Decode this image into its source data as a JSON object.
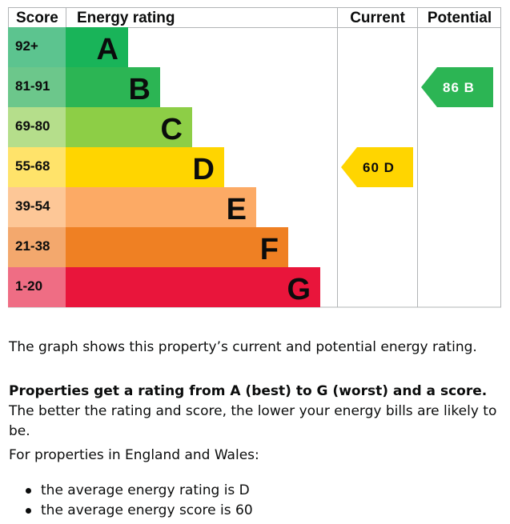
{
  "chart_data": {
    "type": "table",
    "headers": {
      "score": "Score",
      "rating": "Energy rating",
      "current": "Current",
      "potential": "Potential"
    },
    "bands": [
      {
        "score": "92+",
        "letter": "A",
        "color": "#19b459",
        "score_color": "#5cc48f"
      },
      {
        "score": "81-91",
        "letter": "B",
        "color": "#2cb554",
        "score_color": "#6cc78b"
      },
      {
        "score": "69-80",
        "letter": "C",
        "color": "#8dce46",
        "score_color": "#b5de8b"
      },
      {
        "score": "55-68",
        "letter": "D",
        "color": "#ffd500",
        "score_color": "#ffe36a"
      },
      {
        "score": "39-54",
        "letter": "E",
        "color": "#fcaa65",
        "score_color": "#fdc797"
      },
      {
        "score": "21-38",
        "letter": "F",
        "color": "#ef8023",
        "score_color": "#f3a86d"
      },
      {
        "score": "1-20",
        "letter": "G",
        "color": "#e9153b",
        "score_color": "#ef6d84"
      }
    ],
    "current": {
      "score": 60,
      "band": "D",
      "label": "60 D",
      "color": "#ffd500"
    },
    "potential": {
      "score": 86,
      "band": "B",
      "label": "86 B",
      "color": "#2cb554"
    }
  },
  "text": {
    "summary": "The graph shows this property’s current and potential energy rating.",
    "rating_intro_bold": "Properties get a rating from A (best) to G (worst) and a score.",
    "rating_intro_rest": " The better the rating and score, the lower your energy bills are likely to be.",
    "region_intro": "For properties in England and Wales:",
    "average_items": [
      "the average energy rating is D",
      "the average energy score is 60"
    ]
  }
}
